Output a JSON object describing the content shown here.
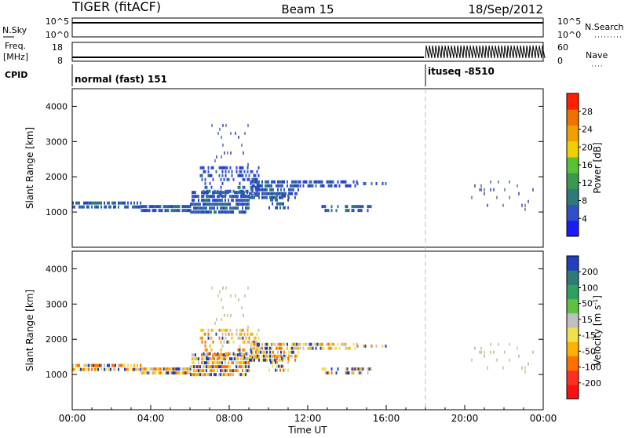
{
  "header": {
    "station": "TIGER (fitACF)",
    "beam": "Beam 15",
    "date": "18/Sep/2012"
  },
  "top_strips": {
    "nsky_label": "N.Sky",
    "nsky_ticks": [
      "10^5",
      "10^0"
    ],
    "nsearch_label": "N.Search",
    "nsearch_ticks": [
      "10^5",
      "10^0"
    ],
    "freq_label_1": "Freq.",
    "freq_label_2": "[MHz]",
    "freq_ticks": [
      "18",
      "8"
    ],
    "nave_label": "Nave",
    "nave_ticks": [
      "60",
      "0"
    ],
    "cpid_label": "CPID",
    "cpid_segments": [
      {
        "label": "normal (fast) 151",
        "start_hour": 0
      },
      {
        "label": "ituseq -8510",
        "start_hour": 18
      }
    ]
  },
  "time_axis": {
    "label": "Time UT",
    "ticks": [
      "00:00",
      "04:00",
      "08:00",
      "12:00",
      "16:00",
      "20:00",
      "00:00"
    ],
    "tick_hours": [
      0,
      4,
      8,
      12,
      16,
      20,
      24
    ],
    "marker_hour": 18
  },
  "chart_data": [
    {
      "type": "heatmap",
      "name": "power",
      "ylabel": "Slant Range [km]",
      "yticks": [
        "1000",
        "2000",
        "3000",
        "4000"
      ],
      "ytick_values": [
        1000,
        2000,
        3000,
        4000
      ],
      "ylim": [
        0,
        4500
      ],
      "xlim": [
        0,
        24
      ],
      "colorbar_label": "Power [dB]",
      "colorbar_ticks": [
        "4",
        "8",
        "12",
        "16",
        "20",
        "24",
        "28"
      ],
      "colorbar_colors": [
        "#1a1aff",
        "#3050c8",
        "#2e7a7a",
        "#3c9850",
        "#5ac036",
        "#f0d000",
        "#f0a000",
        "#f07000",
        "#ff2000"
      ],
      "dominant_colors": [
        "#2a3fd0",
        "#3a55c8",
        "#2e7a7a"
      ],
      "sparse_colors": [
        "#6070b0",
        "#8090b8"
      ],
      "echo_regions": [
        {
          "h0": 0.0,
          "h1": 3.5,
          "r0": 1100,
          "r1": 1300,
          "density": 0.7
        },
        {
          "h0": 3.5,
          "h1": 6.0,
          "r0": 1000,
          "r1": 1200,
          "density": 0.75
        },
        {
          "h0": 6.0,
          "h1": 9.0,
          "r0": 1000,
          "r1": 1600,
          "density": 0.8
        },
        {
          "h0": 6.5,
          "h1": 9.5,
          "r0": 1500,
          "r1": 2300,
          "density": 0.35
        },
        {
          "h0": 7.0,
          "h1": 9.0,
          "r0": 2300,
          "r1": 3500,
          "density": 0.06
        },
        {
          "h0": 9.0,
          "h1": 11.5,
          "r0": 1400,
          "r1": 1900,
          "density": 0.7
        },
        {
          "h0": 10.0,
          "h1": 11.0,
          "r0": 1100,
          "r1": 1500,
          "density": 0.35
        },
        {
          "h0": 11.5,
          "h1": 14.5,
          "r0": 1750,
          "r1": 1900,
          "density": 0.6
        },
        {
          "h0": 12.7,
          "h1": 15.3,
          "r0": 1050,
          "r1": 1200,
          "density": 0.55
        },
        {
          "h0": 14.5,
          "h1": 16.0,
          "r0": 1750,
          "r1": 1850,
          "density": 0.3
        },
        {
          "h0": 20.0,
          "h1": 23.5,
          "r0": 1100,
          "r1": 1900,
          "density": 0.07
        }
      ]
    },
    {
      "type": "heatmap",
      "name": "velocity",
      "ylabel": "Slant Range [km]",
      "yticks": [
        "1000",
        "2000",
        "3000",
        "4000"
      ],
      "ytick_values": [
        1000,
        2000,
        3000,
        4000
      ],
      "ylim": [
        0,
        4500
      ],
      "xlim": [
        0,
        24
      ],
      "colorbar_label": "Velocity [m s",
      "colorbar_label_sup": "-1",
      "colorbar_label_end": "]",
      "colorbar_ticks": [
        "-200",
        "-100",
        "-50",
        "-15",
        "15",
        "50",
        "100",
        "200"
      ],
      "colorbar_colors": [
        "#ff1010",
        "#ff3020",
        "#ff7000",
        "#ffb000",
        "#f0e050",
        "#c0c0c0",
        "#60c040",
        "#30a060",
        "#2e7a7a",
        "#2040c0"
      ],
      "dominant_colors": [
        "#c0c0c0",
        "#f0e050",
        "#ffb000",
        "#ff7000",
        "#2040c0"
      ],
      "sparse_colors": [
        "#c8c8a8",
        "#d0d0b0"
      ],
      "echo_regions": [
        {
          "h0": 0.0,
          "h1": 3.5,
          "r0": 1100,
          "r1": 1300,
          "density": 0.7
        },
        {
          "h0": 3.5,
          "h1": 6.0,
          "r0": 1000,
          "r1": 1200,
          "density": 0.75
        },
        {
          "h0": 6.0,
          "h1": 9.0,
          "r0": 1000,
          "r1": 1600,
          "density": 0.8
        },
        {
          "h0": 6.5,
          "h1": 9.5,
          "r0": 1500,
          "r1": 2300,
          "density": 0.35
        },
        {
          "h0": 7.0,
          "h1": 9.0,
          "r0": 2300,
          "r1": 3500,
          "density": 0.06
        },
        {
          "h0": 9.0,
          "h1": 11.5,
          "r0": 1400,
          "r1": 1900,
          "density": 0.7
        },
        {
          "h0": 10.0,
          "h1": 11.0,
          "r0": 1100,
          "r1": 1500,
          "density": 0.35
        },
        {
          "h0": 11.5,
          "h1": 14.5,
          "r0": 1750,
          "r1": 1900,
          "density": 0.6
        },
        {
          "h0": 12.7,
          "h1": 15.3,
          "r0": 1050,
          "r1": 1200,
          "density": 0.55
        },
        {
          "h0": 14.5,
          "h1": 16.0,
          "r0": 1750,
          "r1": 1850,
          "density": 0.3
        },
        {
          "h0": 20.0,
          "h1": 23.5,
          "r0": 1100,
          "r1": 1900,
          "density": 0.07
        }
      ]
    }
  ]
}
